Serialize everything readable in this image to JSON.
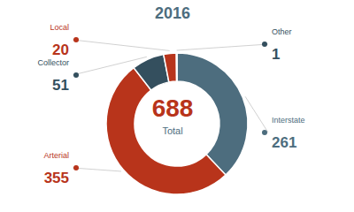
{
  "chart_data": {
    "type": "pie",
    "title": "2016",
    "annotations": [
      "688",
      "Total"
    ],
    "categories": [
      "Interstate",
      "Arterial",
      "Collector",
      "Local",
      "Other"
    ],
    "values": [
      261,
      355,
      51,
      20,
      1
    ],
    "colors": [
      "#4d6d7e",
      "#b8341b",
      "#344f5e",
      "#b8341b",
      "#344f5e"
    ],
    "data_labels": true
  }
}
